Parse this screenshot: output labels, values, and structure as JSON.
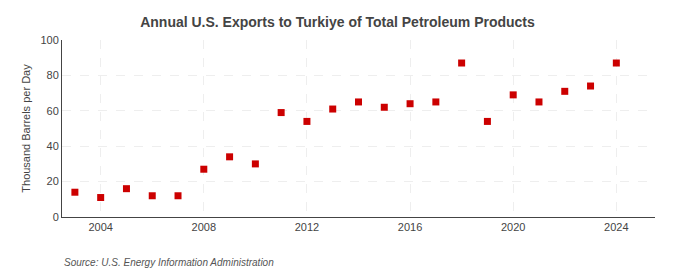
{
  "chart_data": {
    "type": "scatter",
    "title": "Annual U.S. Exports to Turkiye of Total Petroleum Products",
    "ylabel": "Thousand Barrels per Day",
    "annotations": [
      "Source: U.S. Energy Information Administration"
    ],
    "x": [
      2003,
      2004,
      2005,
      2006,
      2007,
      2008,
      2009,
      2010,
      2011,
      2012,
      2013,
      2014,
      2015,
      2016,
      2017,
      2018,
      2019,
      2020,
      2021,
      2022,
      2023,
      2024
    ],
    "values": [
      14,
      11,
      16,
      12,
      12,
      27,
      34,
      30,
      59,
      54,
      61,
      65,
      62,
      64,
      65,
      87,
      54,
      69,
      65,
      71,
      74,
      87
    ],
    "color": "#cc0000",
    "marker": "square",
    "xlim": [
      2002.5,
      2025.5
    ],
    "ylim": [
      0,
      100
    ],
    "xticks": [
      2004,
      2008,
      2012,
      2016,
      2020,
      2024
    ],
    "yticks": [
      0,
      20,
      40,
      60,
      80,
      100
    ],
    "grid": true
  }
}
